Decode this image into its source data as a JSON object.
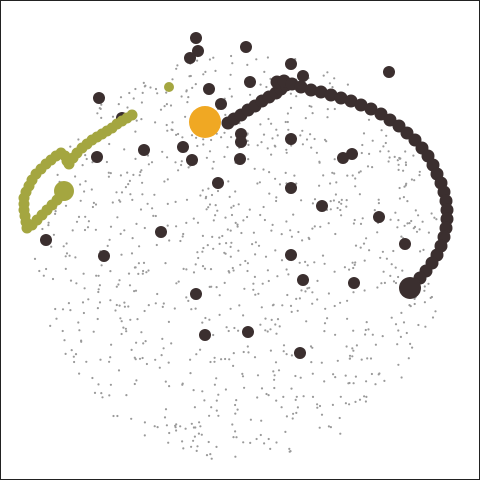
{
  "game": {
    "type": "snake-pellet-arena",
    "background_color": "#ffffff",
    "border_color": "#222222"
  },
  "colors": {
    "food_particle": "#9a9a9a",
    "orb": "#3b2f2f",
    "player_snake": "#3b2f2f",
    "rival_snake": "#a4a640",
    "target_food": "#f0a823"
  },
  "rival_snake": {
    "color_name": "olive",
    "length_segments": 48
  },
  "player_snake": {
    "color_name": "dark-brown",
    "length_segments": 54
  }
}
